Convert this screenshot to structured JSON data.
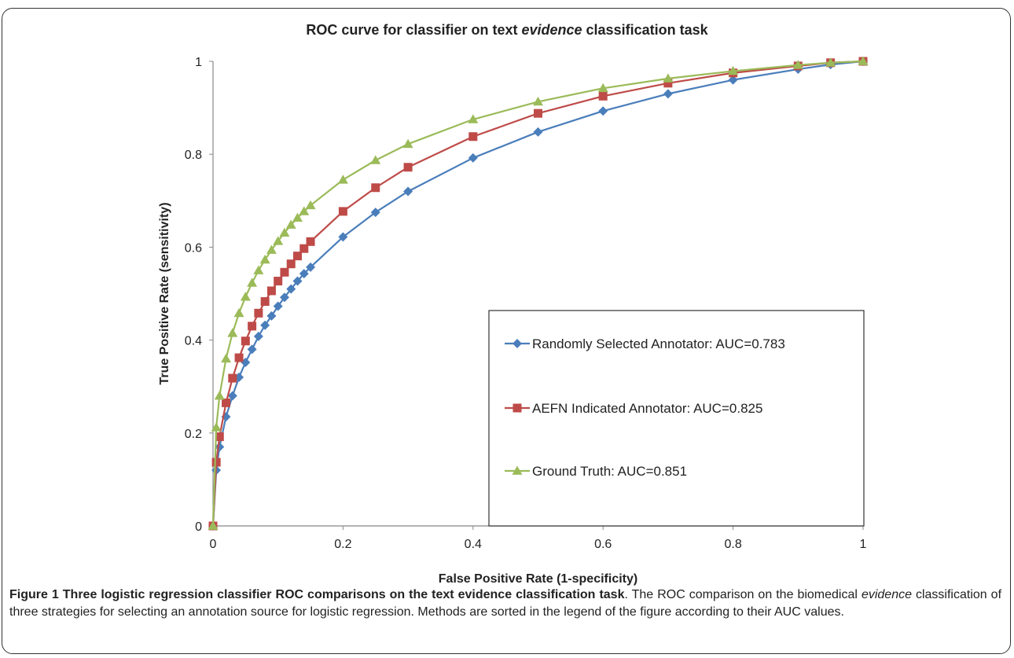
{
  "chart_data": {
    "type": "line",
    "title_parts": [
      "ROC curve for classifier on text ",
      "evidence",
      " classification task"
    ],
    "xlabel": "False Positive Rate (1-specificity)",
    "ylabel": "True Positive Rate (sensitivity)",
    "xlim": [
      0,
      1
    ],
    "ylim": [
      0,
      1
    ],
    "x_ticks": [
      "0",
      "0.2",
      "0.4",
      "0.6",
      "0.8",
      "1"
    ],
    "y_ticks": [
      "0",
      "0.2",
      "0.4",
      "0.6",
      "0.8",
      "1"
    ],
    "grid": false,
    "legend_position": "bottom-right",
    "series": [
      {
        "name": "Randomly Selected Annotator: AUC=0.783",
        "color": "#4a7ebb",
        "marker": "diamond",
        "points": [
          [
            0,
            0
          ],
          [
            0.005,
            0.12
          ],
          [
            0.01,
            0.17
          ],
          [
            0.02,
            0.235
          ],
          [
            0.03,
            0.28
          ],
          [
            0.04,
            0.32
          ],
          [
            0.05,
            0.352
          ],
          [
            0.06,
            0.38
          ],
          [
            0.07,
            0.408
          ],
          [
            0.08,
            0.432
          ],
          [
            0.09,
            0.452
          ],
          [
            0.1,
            0.473
          ],
          [
            0.11,
            0.492
          ],
          [
            0.12,
            0.51
          ],
          [
            0.13,
            0.527
          ],
          [
            0.14,
            0.543
          ],
          [
            0.15,
            0.557
          ],
          [
            0.2,
            0.622
          ],
          [
            0.25,
            0.675
          ],
          [
            0.3,
            0.72
          ],
          [
            0.4,
            0.792
          ],
          [
            0.5,
            0.848
          ],
          [
            0.6,
            0.893
          ],
          [
            0.7,
            0.93
          ],
          [
            0.8,
            0.96
          ],
          [
            0.9,
            0.983
          ],
          [
            0.95,
            0.993
          ],
          [
            1,
            1
          ]
        ]
      },
      {
        "name": "AEFN Indicated Annotator: AUC=0.825",
        "color": "#be4b48",
        "marker": "square",
        "points": [
          [
            0,
            0
          ],
          [
            0.005,
            0.137
          ],
          [
            0.01,
            0.192
          ],
          [
            0.02,
            0.265
          ],
          [
            0.03,
            0.318
          ],
          [
            0.04,
            0.362
          ],
          [
            0.05,
            0.398
          ],
          [
            0.06,
            0.43
          ],
          [
            0.07,
            0.458
          ],
          [
            0.08,
            0.483
          ],
          [
            0.09,
            0.506
          ],
          [
            0.1,
            0.527
          ],
          [
            0.11,
            0.546
          ],
          [
            0.12,
            0.564
          ],
          [
            0.13,
            0.581
          ],
          [
            0.14,
            0.597
          ],
          [
            0.15,
            0.612
          ],
          [
            0.2,
            0.677
          ],
          [
            0.25,
            0.728
          ],
          [
            0.3,
            0.772
          ],
          [
            0.4,
            0.838
          ],
          [
            0.5,
            0.888
          ],
          [
            0.6,
            0.925
          ],
          [
            0.7,
            0.953
          ],
          [
            0.8,
            0.975
          ],
          [
            0.9,
            0.99
          ],
          [
            0.95,
            0.997
          ],
          [
            1,
            1
          ]
        ]
      },
      {
        "name": "Ground Truth: AUC=0.851",
        "color": "#9bbb59",
        "marker": "triangle",
        "points": [
          [
            0,
            0
          ],
          [
            0.005,
            0.212
          ],
          [
            0.01,
            0.28
          ],
          [
            0.02,
            0.36
          ],
          [
            0.03,
            0.415
          ],
          [
            0.04,
            0.458
          ],
          [
            0.05,
            0.493
          ],
          [
            0.06,
            0.523
          ],
          [
            0.07,
            0.55
          ],
          [
            0.08,
            0.573
          ],
          [
            0.09,
            0.594
          ],
          [
            0.1,
            0.613
          ],
          [
            0.11,
            0.631
          ],
          [
            0.12,
            0.648
          ],
          [
            0.13,
            0.663
          ],
          [
            0.14,
            0.677
          ],
          [
            0.15,
            0.69
          ],
          [
            0.2,
            0.745
          ],
          [
            0.25,
            0.787
          ],
          [
            0.3,
            0.822
          ],
          [
            0.4,
            0.875
          ],
          [
            0.5,
            0.913
          ],
          [
            0.6,
            0.942
          ],
          [
            0.7,
            0.963
          ],
          [
            0.8,
            0.979
          ],
          [
            0.9,
            0.992
          ],
          [
            0.95,
            0.997
          ],
          [
            1,
            1
          ]
        ]
      }
    ]
  },
  "caption": {
    "bold": "Figure 1 Three logistic regression classifier ROC comparisons on the text evidence classification task",
    "text_before_italic": ". The ROC comparison on the biomedical ",
    "italic": "evidence",
    "text_after_italic": " classification of three strategies for selecting an annotation source for logistic regression. Methods are sorted in the legend of the figure according to their AUC values."
  }
}
